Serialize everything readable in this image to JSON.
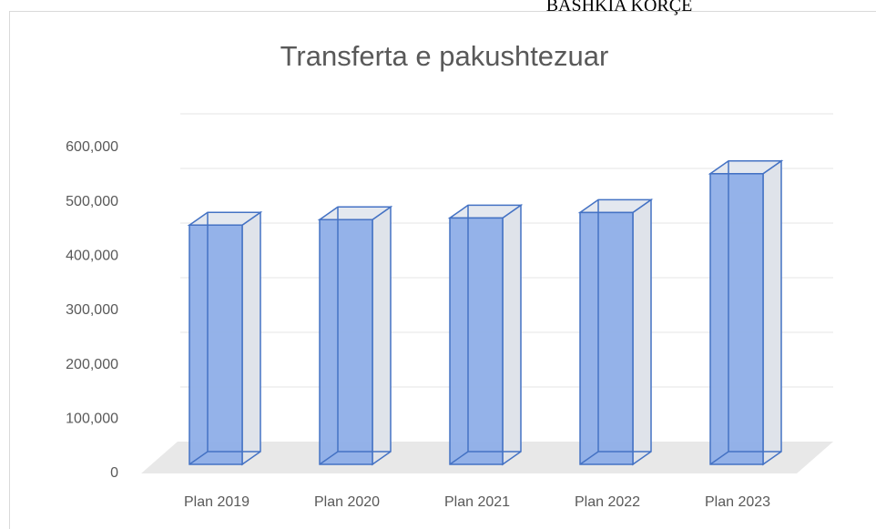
{
  "header": "BASHKIA KORÇE",
  "chart_data": {
    "type": "bar3d",
    "title": "Transferta e pakushtezuar",
    "categories": [
      "Plan 2019",
      "Plan 2020",
      "Plan 2021",
      "Plan 2022",
      "Plan 2023"
    ],
    "values": [
      438000,
      448000,
      451000,
      461000,
      532000
    ],
    "color": "#8eaee8",
    "ylim": [
      0,
      600000
    ],
    "yticks": [
      0,
      {
        "value": 100000,
        "label": "100,000"
      },
      {
        "value": 200000,
        "label": "200,000"
      },
      {
        "value": 300000,
        "label": "300,000"
      },
      {
        "value": 400000,
        "label": "400,000"
      },
      {
        "value": 500000,
        "label": "500,000"
      },
      {
        "value": 600000,
        "label": "600,000"
      }
    ],
    "grid": true
  }
}
